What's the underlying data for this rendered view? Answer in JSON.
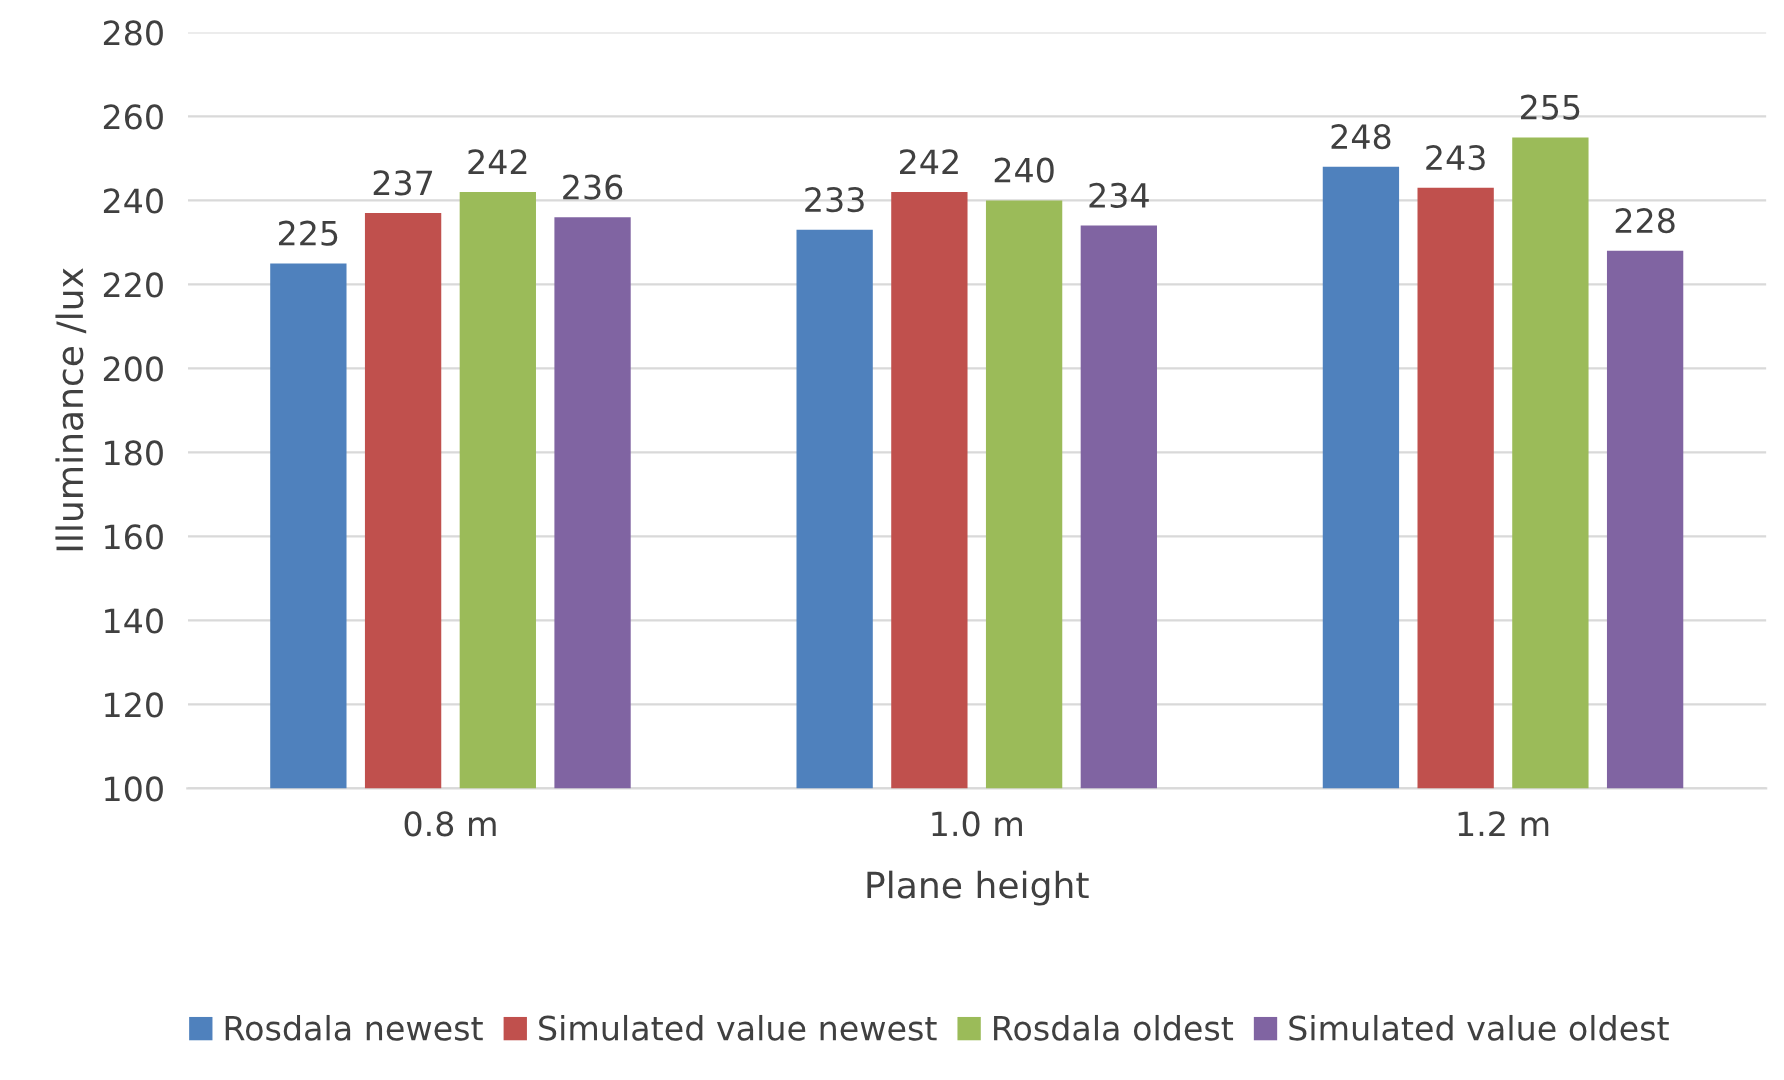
{
  "chart_data": {
    "type": "bar",
    "xlabel": "Plane height",
    "ylabel": "Illuminance /lux",
    "categories": [
      "0.8 m",
      "1.0 m",
      "1.2 m"
    ],
    "series": [
      {
        "name": "Rosdala newest",
        "color": "#4f81bd",
        "values": [
          225,
          233,
          248
        ]
      },
      {
        "name": "Simulated value newest",
        "color": "#c0504d",
        "values": [
          237,
          242,
          243
        ]
      },
      {
        "name": "Rosdala oldest",
        "color": "#9bbb59",
        "values": [
          242,
          240,
          255
        ]
      },
      {
        "name": "Simulated value oldest",
        "color": "#8064a2",
        "values": [
          236,
          234,
          228
        ]
      }
    ],
    "ylim": [
      100,
      280
    ],
    "yticks": [
      100,
      120,
      140,
      160,
      180,
      200,
      220,
      240,
      260,
      280
    ],
    "grid": "y",
    "legend": "bottom",
    "data_labels": true
  }
}
